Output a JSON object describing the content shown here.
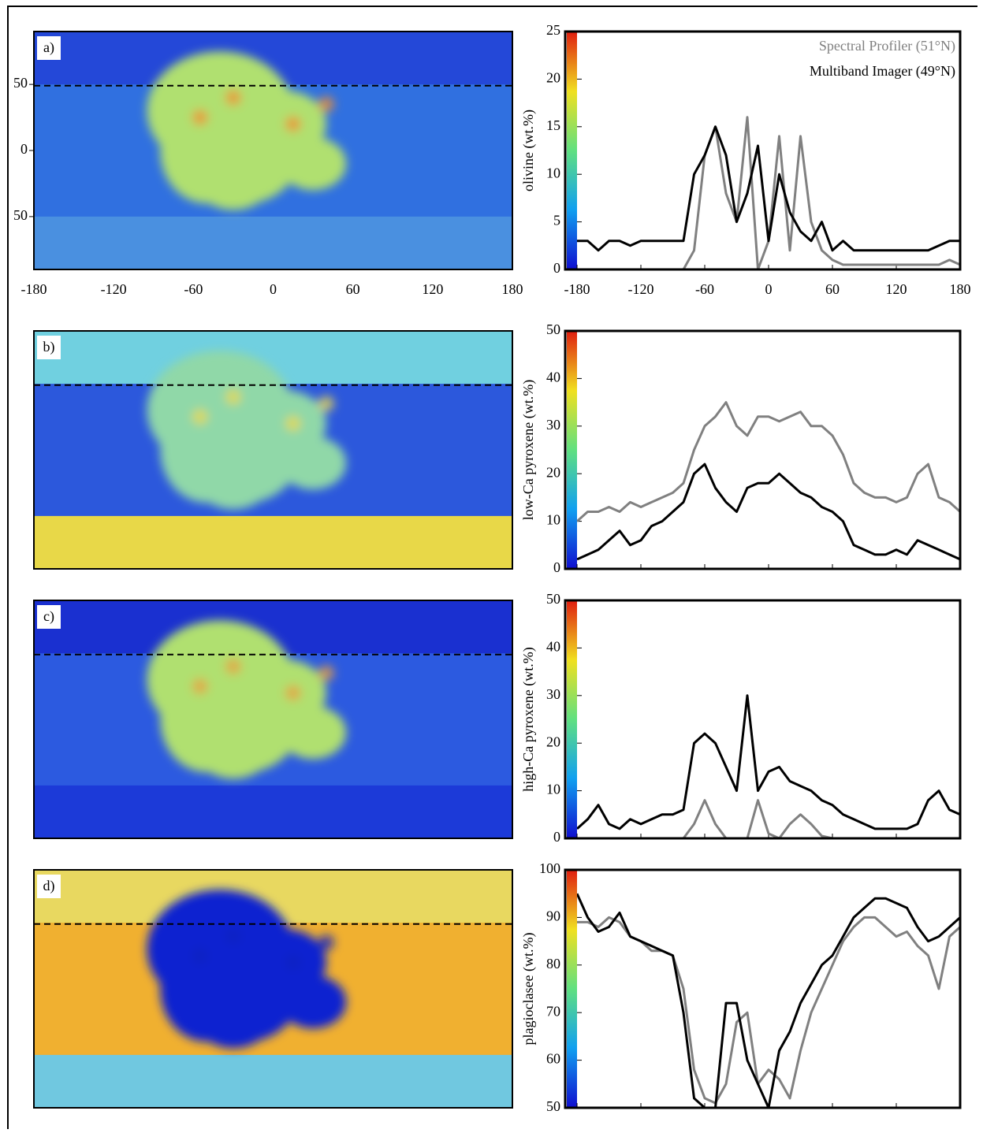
{
  "chart_data": [
    {
      "type": "line",
      "panel_label": "a)",
      "ylabel": "olivine (wt.%)",
      "legend": "upper right",
      "map": {
        "xlim": [
          -180,
          180
        ],
        "ylim": [
          -90,
          90
        ],
        "xticks": [
          -180,
          -120,
          -60,
          0,
          60,
          120,
          180
        ],
        "yticks": [
          50,
          0,
          {
            "value": -50,
            "label": "50"
          }
        ]
      },
      "x": [
        -180,
        -170,
        -160,
        -150,
        -140,
        -130,
        -120,
        -110,
        -100,
        -90,
        -80,
        -70,
        -60,
        -50,
        -40,
        -30,
        -20,
        -10,
        0,
        10,
        20,
        30,
        40,
        50,
        60,
        70,
        80,
        90,
        100,
        110,
        120,
        130,
        140,
        150,
        160,
        170,
        180
      ],
      "xlim": [
        -180,
        180
      ],
      "xticks": [
        -180,
        -120,
        -60,
        0,
        60,
        120,
        180
      ],
      "ylim": [
        0,
        25
      ],
      "yticks": [
        0,
        5,
        10,
        15,
        20,
        25
      ],
      "series": [
        {
          "name": "Spectral Profiler (51°N)",
          "color": "#808080",
          "values": [
            0,
            0,
            0,
            0,
            0,
            0,
            0,
            0,
            0,
            0,
            0,
            2,
            12,
            15,
            8,
            5,
            16,
            0,
            3,
            14,
            2,
            14,
            5,
            2,
            1,
            0.5,
            0.5,
            0.5,
            0.5,
            0.5,
            0.5,
            0.5,
            0.5,
            0.5,
            0.5,
            1,
            0.5
          ]
        },
        {
          "name": "Multiband Imager (49°N)",
          "color": "#000000",
          "values": [
            3,
            3,
            2,
            3,
            3,
            2.5,
            3,
            3,
            3,
            3,
            3,
            10,
            12,
            15,
            12,
            5,
            8,
            13,
            3,
            10,
            6,
            4,
            3,
            5,
            2,
            3,
            2,
            2,
            2,
            2,
            2,
            2,
            2,
            2,
            2.5,
            3,
            3
          ]
        }
      ]
    },
    {
      "type": "line",
      "panel_label": "b)",
      "ylabel": "low-Ca pyroxene (wt.%)",
      "x": [
        -180,
        -170,
        -160,
        -150,
        -140,
        -130,
        -120,
        -110,
        -100,
        -90,
        -80,
        -70,
        -60,
        -50,
        -40,
        -30,
        -20,
        -10,
        0,
        10,
        20,
        30,
        40,
        50,
        60,
        70,
        80,
        90,
        100,
        110,
        120,
        130,
        140,
        150,
        160,
        170,
        180
      ],
      "xlim": [
        -180,
        180
      ],
      "ylim": [
        0,
        50
      ],
      "yticks": [
        0,
        10,
        20,
        30,
        40,
        50
      ],
      "series": [
        {
          "color": "#808080",
          "values": [
            10,
            12,
            12,
            13,
            12,
            14,
            13,
            14,
            15,
            16,
            18,
            25,
            30,
            32,
            35,
            30,
            28,
            32,
            32,
            31,
            32,
            33,
            30,
            30,
            28,
            24,
            18,
            16,
            15,
            15,
            14,
            15,
            20,
            22,
            15,
            14,
            12
          ]
        },
        {
          "color": "#000000",
          "values": [
            2,
            3,
            4,
            6,
            8,
            5,
            6,
            9,
            10,
            12,
            14,
            20,
            22,
            17,
            14,
            12,
            17,
            18,
            18,
            20,
            18,
            16,
            15,
            13,
            12,
            10,
            5,
            4,
            3,
            3,
            4,
            3,
            6,
            5,
            4,
            3,
            2
          ]
        }
      ]
    },
    {
      "type": "line",
      "panel_label": "c)",
      "ylabel": "high-Ca pyroxene (wt.%)",
      "x": [
        -180,
        -170,
        -160,
        -150,
        -140,
        -130,
        -120,
        -110,
        -100,
        -90,
        -80,
        -70,
        -60,
        -50,
        -40,
        -30,
        -20,
        -10,
        0,
        10,
        20,
        30,
        40,
        50,
        60,
        70,
        80,
        90,
        100,
        110,
        120,
        130,
        140,
        150,
        160,
        170,
        180
      ],
      "xlim": [
        -180,
        180
      ],
      "ylim": [
        0,
        50
      ],
      "yticks": [
        0,
        10,
        20,
        30,
        40,
        50
      ],
      "series": [
        {
          "color": "#808080",
          "values": [
            0,
            0,
            0,
            0,
            0,
            0,
            0,
            0,
            0,
            0,
            0,
            3,
            8,
            3,
            0,
            0,
            0,
            8,
            1,
            0,
            3,
            5,
            3,
            0.5,
            0,
            0,
            0,
            0,
            0,
            0,
            0,
            0,
            0,
            0,
            0,
            0,
            0
          ]
        },
        {
          "color": "#000000",
          "values": [
            2,
            4,
            7,
            3,
            2,
            4,
            3,
            4,
            5,
            5,
            6,
            20,
            22,
            20,
            15,
            10,
            30,
            10,
            14,
            15,
            12,
            11,
            10,
            8,
            7,
            5,
            4,
            3,
            2,
            2,
            2,
            2,
            3,
            8,
            10,
            6,
            5
          ]
        }
      ]
    },
    {
      "type": "line",
      "panel_label": "d)",
      "ylabel": "plagioclasee (wt.%)",
      "x": [
        -180,
        -170,
        -160,
        -150,
        -140,
        -130,
        -120,
        -110,
        -100,
        -90,
        -80,
        -70,
        -60,
        -50,
        -40,
        -30,
        -20,
        -10,
        0,
        10,
        20,
        30,
        40,
        50,
        60,
        70,
        80,
        90,
        100,
        110,
        120,
        130,
        140,
        150,
        160,
        170,
        180
      ],
      "xlim": [
        -180,
        180
      ],
      "ylim": [
        50,
        100
      ],
      "yticks": [
        50,
        60,
        70,
        80,
        90,
        100
      ],
      "series": [
        {
          "color": "#808080",
          "values": [
            89,
            89,
            88,
            90,
            89,
            86,
            85,
            83,
            83,
            82,
            75,
            58,
            52,
            51,
            55,
            68,
            70,
            55,
            58,
            56,
            52,
            62,
            70,
            75,
            80,
            85,
            88,
            90,
            90,
            88,
            86,
            87,
            84,
            82,
            75,
            86,
            88
          ]
        },
        {
          "color": "#000000",
          "values": [
            95,
            90,
            87,
            88,
            91,
            86,
            85,
            84,
            83,
            82,
            70,
            52,
            50,
            50,
            72,
            72,
            60,
            55,
            50,
            62,
            66,
            72,
            76,
            80,
            82,
            86,
            90,
            92,
            94,
            94,
            93,
            92,
            88,
            85,
            86,
            88,
            90
          ]
        }
      ]
    }
  ]
}
